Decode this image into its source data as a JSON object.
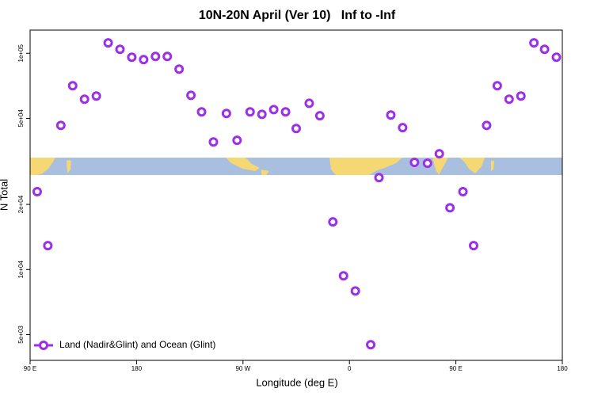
{
  "chart_data": {
    "type": "scatter",
    "title": "10N-20N April (Ver 10)   Inf to -Inf",
    "xlabel": "Longitude (deg E)",
    "ylabel": "N Total",
    "log_y": true,
    "legend": "bottom left",
    "series": [
      {
        "name": "Land (Nadir&Glint) and Ocean (Glint)",
        "color": "#9b30e8",
        "x": [
          96,
          105,
          116,
          126,
          136,
          146,
          156,
          166,
          176,
          186,
          196,
          206,
          216,
          226,
          235,
          245,
          256,
          265,
          276,
          286,
          296,
          306,
          315,
          326,
          335,
          346,
          355,
          365,
          378,
          385,
          395,
          405,
          415,
          426,
          436,
          445,
          456,
          465,
          476,
          485,
          495,
          505,
          516,
          525,
          535
        ],
        "values": [
          22900,
          12900,
          46400,
          70800,
          61300,
          63400,
          111700,
          104300,
          95900,
          93500,
          96700,
          96700,
          84500,
          63900,
          53600,
          38900,
          52700,
          39600,
          53600,
          52200,
          54900,
          53600,
          44900,
          58700,
          51400,
          16600,
          9350,
          7960,
          4490,
          26600,
          51800,
          45300,
          31300,
          31000,
          34300,
          19300,
          22900,
          12900,
          46400,
          70800,
          61300,
          63400,
          111700,
          104300,
          95900
        ]
      }
    ],
    "xlim": [
      90,
      540
    ],
    "xticks": [
      {
        "value": 90,
        "label": "90 E"
      },
      180,
      {
        "value": 270,
        "label": "90 W"
      },
      {
        "value": 360,
        "label": "0"
      },
      {
        "value": 450,
        "label": "90 E"
      },
      {
        "value": 540,
        "label": "180"
      }
    ],
    "ylim": [
      3800,
      128000
    ],
    "yticks": [
      {
        "value": 5000,
        "label": "5e+03"
      },
      {
        "value": 10000,
        "label": "1e+04"
      },
      {
        "value": 20000,
        "label": "2e+04"
      },
      {
        "value": 50000,
        "label": "5e+04"
      },
      {
        "value": 100000,
        "label": "1e+05"
      }
    ]
  }
}
